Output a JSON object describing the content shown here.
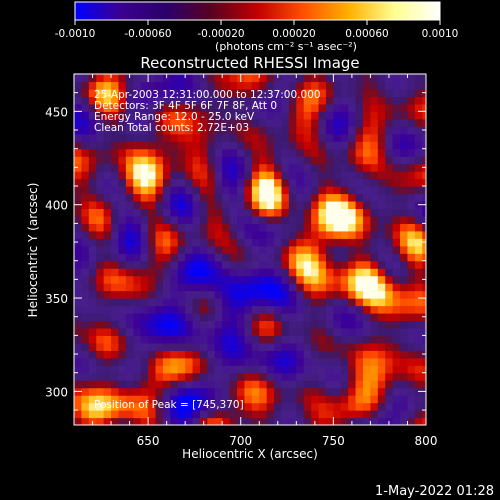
{
  "chart_data": {
    "type": "heatmap",
    "title": "Reconstructed RHESSI Image",
    "xlabel": "Heliocentric X (arcsec)",
    "ylabel": "Heliocentric Y (arcsec)",
    "xlim": [
      610,
      800
    ],
    "ylim": [
      282,
      470
    ],
    "x_ticks": [
      650,
      700,
      750,
      800
    ],
    "y_ticks": [
      300,
      350,
      400,
      450
    ],
    "x_tick_labels": [
      "650",
      "700",
      "750",
      "800"
    ],
    "y_tick_labels": [
      "300",
      "350",
      "400",
      "450"
    ],
    "colorbar": {
      "range": [
        -0.001,
        0.001
      ],
      "ticks": [
        -0.001,
        -0.0006,
        -0.0002,
        0.0002,
        0.0006,
        0.001
      ],
      "tick_labels": [
        "-0.0010",
        "-0.00060",
        "-0.00020",
        "0.00020",
        "0.00060",
        "0.0010"
      ],
      "label": "(photons cm⁻² s⁻¹ asec⁻²)",
      "stops": [
        "#0000ff",
        "#3a0090",
        "#2a006a",
        "#5a0020",
        "#c00000",
        "#ff5000",
        "#ffb000",
        "#ffff90",
        "#ffffff"
      ]
    },
    "info": [
      "25-Apr-2003 12:31:00.000 to 12:37:00.000",
      "Detectors: 3F 4F 5F 6F 7F 8F, Att 0",
      "Energy Range: 12.0 - 25.0 keV",
      "Clean    Total counts: 2.72E+03"
    ],
    "peak_label": "Position of Peak = [745,370]",
    "peak": [
      745,
      370
    ],
    "sources": [
      {
        "x": 745,
        "y": 370,
        "amplitude": 0.001
      },
      {
        "x": 782,
        "y": 352,
        "amplitude": 0.00072
      },
      {
        "x": 760,
        "y": 392,
        "amplitude": 0.00058
      },
      {
        "x": 720,
        "y": 402,
        "amplitude": 0.00052
      },
      {
        "x": 650,
        "y": 422,
        "amplitude": 0.00058
      },
      {
        "x": 630,
        "y": 300,
        "amplitude": 0.0005
      },
      {
        "x": 700,
        "y": 300,
        "amplitude": 0.00042
      },
      {
        "x": 770,
        "y": 310,
        "amplitude": 0.0004
      }
    ],
    "negative_region": {
      "x": 695,
      "y": 345,
      "amplitude": -0.00055
    }
  },
  "footer": {
    "date": "1-May-2022 01:28"
  }
}
